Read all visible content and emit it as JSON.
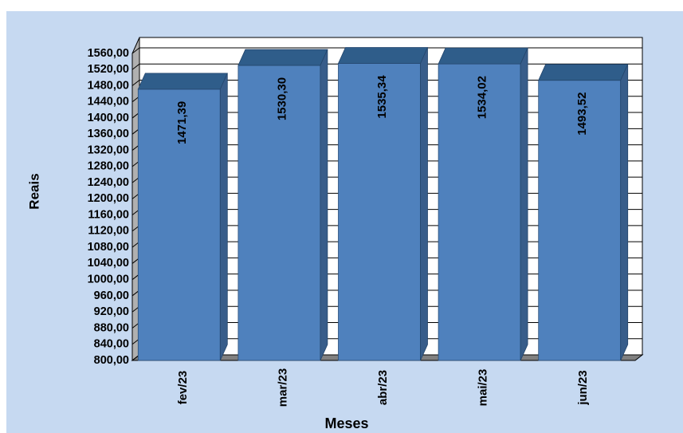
{
  "chart_data": {
    "type": "bar",
    "title": "",
    "categories": [
      "fev/23",
      "mar/23",
      "abr/23",
      "mai/23",
      "jun/23"
    ],
    "values": [
      1471.39,
      1530.3,
      1535.34,
      1534.02,
      1493.52
    ],
    "data_labels": [
      "1471,39",
      "1530,30",
      "1535,34",
      "1534,02",
      "1493,52"
    ],
    "xlabel": "Meses",
    "ylabel": "Reais",
    "ylim": [
      800,
      1560
    ],
    "yticks": [
      800,
      840,
      880,
      920,
      960,
      1000,
      1040,
      1080,
      1120,
      1160,
      1200,
      1240,
      1280,
      1320,
      1360,
      1400,
      1440,
      1480,
      1520,
      1560
    ],
    "ytick_labels": [
      "800,00",
      "840,00",
      "880,00",
      "920,00",
      "960,00",
      "1000,00",
      "1040,00",
      "1080,00",
      "1120,00",
      "1160,00",
      "1200,00",
      "1240,00",
      "1280,00",
      "1320,00",
      "1360,00",
      "1400,00",
      "1440,00",
      "1480,00",
      "1520,00",
      "1560,00"
    ],
    "grid": true,
    "style": "3d-bar",
    "colors": {
      "chart_background": "#c6d9f1",
      "bar_front": "#4f81bd",
      "bar_side": "#385d8a",
      "bar_top": "#2f5d8a",
      "wall": "#ffffff",
      "floor": "#808080"
    }
  }
}
